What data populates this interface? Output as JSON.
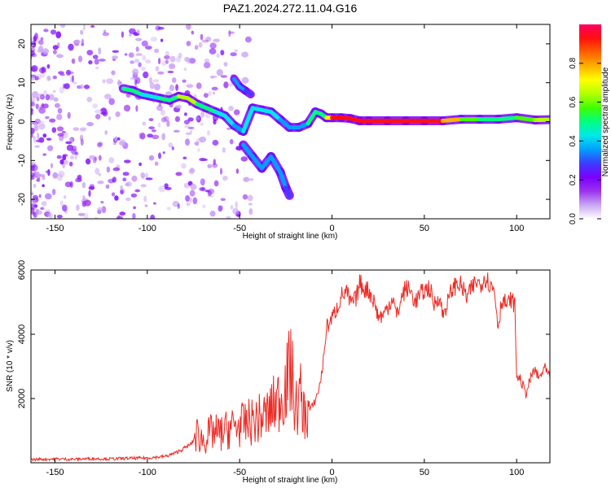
{
  "chart_data": [
    {
      "type": "heatmap",
      "title": "PAZ1.2024.272.11.04.G16",
      "xlabel": "Height of straight line (km)",
      "ylabel": "Frequency (Hz)",
      "xlim": [
        -163,
        118
      ],
      "ylim": [
        -25,
        25
      ],
      "xticks": [
        "-150",
        "-100",
        "-50",
        "0",
        "50",
        "100"
      ],
      "yticks": [
        "-20",
        "-10",
        "0",
        "10",
        "20"
      ],
      "colorbar": {
        "label": "Normalized spectral amplitude",
        "range": [
          0,
          1
        ],
        "ticks": [
          "0.0",
          "0.2",
          "0.4",
          "0.6",
          "0.8"
        ],
        "colors": [
          "#ffffff",
          "#c9a6f2",
          "#9a32ee",
          "#7a00ff",
          "#3c3cff",
          "#00a0ff",
          "#00e8e8",
          "#00ff80",
          "#40ff00",
          "#b4ff00",
          "#ffff00",
          "#ffb000",
          "#ff6000",
          "#ff1010",
          "#ff0060"
        ]
      },
      "ridge": {
        "x": [
          -113,
          -108,
          -103,
          -98,
          -93,
          -88,
          -83,
          -78,
          -73,
          -68,
          -63,
          -58,
          -53,
          -48,
          -43,
          -38,
          -33,
          -28,
          -23,
          -18,
          -13,
          -9,
          -6,
          -3,
          0,
          5,
          10,
          15,
          20,
          30,
          40,
          50,
          60,
          70,
          80,
          90,
          100,
          110,
          118
        ],
        "y": [
          8.5,
          8,
          7,
          6.5,
          6,
          5.5,
          6.5,
          6,
          4.5,
          3.5,
          2.5,
          1.5,
          -1,
          -2.5,
          3.5,
          3,
          2.5,
          0.5,
          -1.5,
          -1.5,
          -0.5,
          2.5,
          2,
          1,
          1,
          1,
          0.8,
          0.2,
          0.2,
          0.2,
          0.2,
          0.2,
          0.2,
          0.6,
          0.6,
          0.6,
          1,
          0.4,
          0.5
        ],
        "amplitude": [
          0.45,
          0.5,
          0.45,
          0.4,
          0.45,
          0.5,
          0.55,
          0.75,
          0.55,
          0.5,
          0.45,
          0.4,
          0.4,
          0.35,
          0.45,
          0.4,
          0.4,
          0.4,
          0.35,
          0.35,
          0.35,
          0.6,
          0.45,
          0.5,
          0.9,
          0.95,
          0.9,
          0.95,
          0.95,
          0.95,
          0.95,
          0.95,
          0.95,
          0.6,
          0.55,
          0.5,
          0.45,
          0.7,
          0.55
        ]
      },
      "secondary_branch": {
        "x": [
          -48,
          -43,
          -38,
          -33,
          -28,
          -25,
          -23
        ],
        "y": [
          -6,
          -9,
          -12,
          -9,
          -13,
          -17,
          -19
        ],
        "amplitude": [
          0.35,
          0.3,
          0.35,
          0.3,
          0.35,
          0.3,
          0.3
        ]
      },
      "upper_streak": {
        "x": [
          -53,
          -50,
          -47,
          -44
        ],
        "y": [
          11,
          9,
          8,
          7
        ],
        "amplitude": [
          0.3,
          0.35,
          0.3,
          0.3
        ]
      }
    },
    {
      "type": "line",
      "xlabel": "Height of straight line (km)",
      "ylabel": "SNR (10 * v/v)",
      "xlim": [
        -163,
        118
      ],
      "ylim": [
        0,
        6000
      ],
      "xticks": [
        "-150",
        "-100",
        "-50",
        "0",
        "50",
        "100"
      ],
      "yticks": [
        "2000",
        "4000",
        "6000"
      ],
      "color": "#ee2a24",
      "series": [
        {
          "x": [
            -163,
            -150,
            -140,
            -130,
            -120,
            -110,
            -100,
            -90,
            -85,
            -80,
            -76,
            -73,
            -70,
            -65,
            -60,
            -55,
            -50,
            -45,
            -40,
            -35,
            -30,
            -27,
            -25,
            -22,
            -20,
            -17,
            -15,
            -12,
            -10,
            -7,
            -5,
            -3,
            0,
            3,
            5,
            8,
            10,
            13,
            15,
            17,
            20,
            23,
            25,
            28,
            30,
            33,
            35,
            38,
            40,
            43,
            45,
            48,
            50,
            53,
            55,
            58,
            60,
            63,
            65,
            68,
            70,
            73,
            75,
            78,
            80,
            83,
            85,
            88,
            90,
            92,
            95,
            97,
            99,
            100,
            102,
            105,
            108,
            110,
            112,
            115,
            118
          ],
          "y": [
            100,
            120,
            110,
            130,
            120,
            140,
            150,
            200,
            300,
            450,
            600,
            900,
            700,
            950,
            900,
            1100,
            1150,
            1250,
            1350,
            1500,
            1900,
            2100,
            2400,
            3000,
            1600,
            2100,
            1450,
            1650,
            1800,
            2300,
            3000,
            4200,
            4500,
            4850,
            5200,
            5300,
            4950,
            5100,
            5600,
            5450,
            5350,
            5000,
            4550,
            4600,
            4850,
            5150,
            4550,
            5200,
            5450,
            5300,
            5000,
            5250,
            5350,
            5450,
            4900,
            5200,
            4600,
            5050,
            5400,
            5600,
            5500,
            5150,
            5350,
            5650,
            5550,
            5800,
            5600,
            5350,
            4250,
            5100,
            4900,
            5100,
            4900,
            2700,
            2600,
            2150,
            2700,
            2900,
            2600,
            2950,
            2650
          ]
        }
      ]
    }
  ]
}
